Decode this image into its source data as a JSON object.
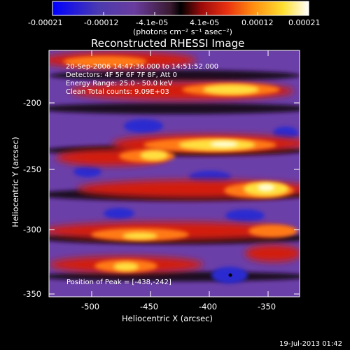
{
  "colorbar": {
    "tick_labels": [
      "-0.00021",
      "-0.00012",
      "-4.1e-05",
      "4.1e-05",
      "0.00012",
      "0.00021"
    ],
    "unit_label": "(photons cm⁻² s⁻¹ asec⁻²)",
    "colormap": [
      "#0000ff",
      "#5b3aa0",
      "#6f3fa5",
      "#7a2f6a",
      "#000000",
      "#a01010",
      "#e02810",
      "#ff7a10",
      "#ffd21e",
      "#ffffd0",
      "#ffffff"
    ]
  },
  "image": {
    "title": "Reconstructed RHESSI Image",
    "info_lines": [
      "20-Sep-2006 14:47:36.000 to 14:51:52.000",
      "Detectors: 4F 5F 6F 7F 8F, Att 0",
      "Energy Range: 25.0 - 50.0 keV",
      "Clean     Total counts: 9.09E+03"
    ],
    "peak_label": "Position of Peak = [-438,-242]",
    "xlabel": "Heliocentric X (arcsec)",
    "ylabel": "Heliocentric Y (arcsec)",
    "x_ticks": [
      "-500",
      "-450",
      "-400",
      "-350"
    ],
    "y_ticks": [
      "-200",
      "-250",
      "-300",
      "-350"
    ],
    "xlim": [
      -527,
      -337
    ],
    "ylim": [
      -355,
      -170
    ],
    "stamp": "19-Jul-2013 01:42"
  }
}
